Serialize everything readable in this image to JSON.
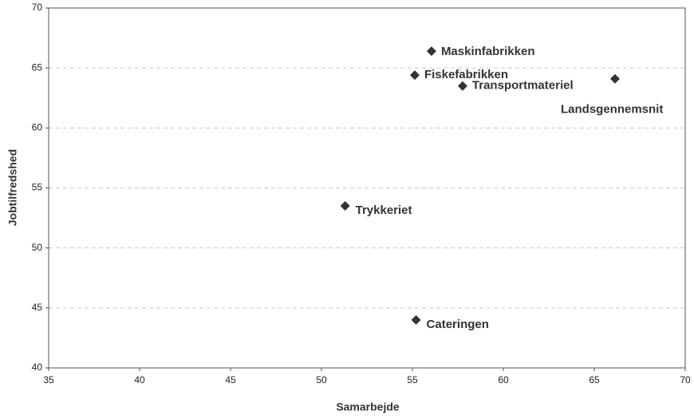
{
  "chart_data": {
    "type": "scatter",
    "x_label": "Samarbejde",
    "y_label": "Jobtilfredshed",
    "point_labels": [
      "Maskinfabrikken",
      "Fiskefabrikken",
      "Transportmateriel",
      "Landsgennemsnit",
      "Trykkeriet",
      "Cateringen"
    ],
    "x": [
      56.05,
      55.13,
      57.76,
      66.14,
      51.3,
      55.2
    ],
    "values": [
      66.4,
      64.4,
      63.5,
      64.1,
      53.5,
      44.0
    ],
    "color": "#333333",
    "xlim": [
      35,
      70
    ],
    "xticks": [
      35,
      40,
      45,
      50,
      55,
      60,
      65,
      70
    ],
    "ylim": [
      40,
      70
    ],
    "yticks": [
      40,
      45,
      50,
      55,
      60,
      65,
      70
    ],
    "grid": true
  }
}
